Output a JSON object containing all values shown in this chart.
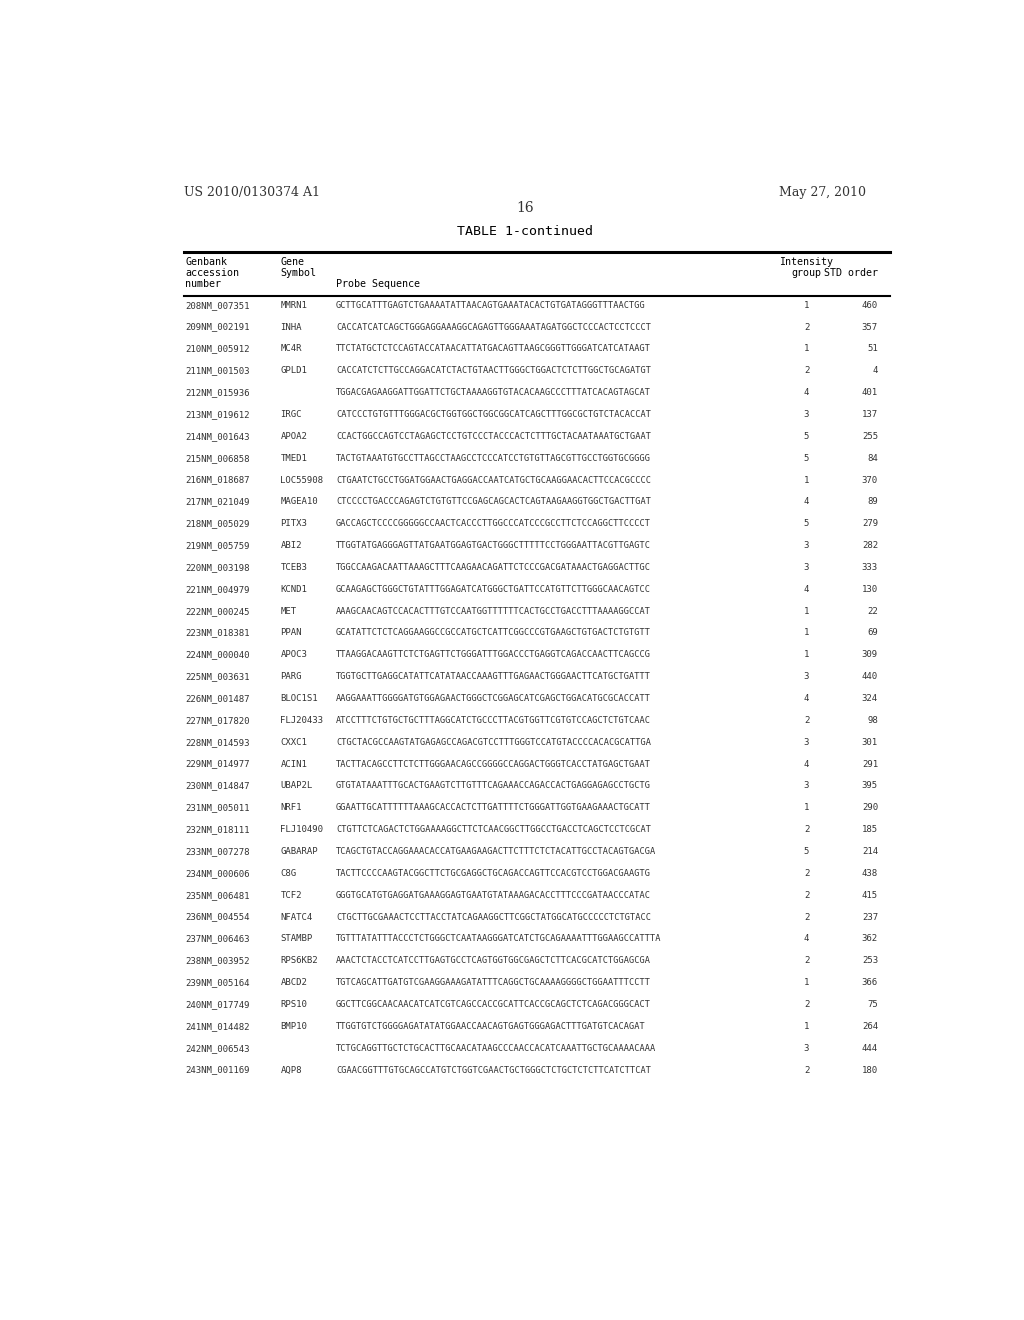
{
  "left_header": "US 2010/0130374 A1",
  "right_header": "May 27, 2010",
  "page_number": "16",
  "table_title": "TABLE 1-continued",
  "rows": [
    [
      "208NM_007351",
      "MMRN1",
      "GCTTGCATTTGAGTCTGAAAATATTAACAGTGAAATACACTGTGATAGGGTTTAACTGG",
      "1",
      "460"
    ],
    [
      "209NM_002191",
      "INHA",
      "CACCATCATCAGCTGGGAGGAAAGGCAGAGTTGGGAAATAGATGGCTCCCACTCCTCCCT",
      "2",
      "357"
    ],
    [
      "210NM_005912",
      "MC4R",
      "TTCTATGCTCTCCAGTACCATAACATTATGACAGTTAAGCGGGTTGGGATCATCATAAGT",
      "1",
      "51"
    ],
    [
      "211NM_001503",
      "GPLD1",
      "CACCATCTCTTGCCAGGACATCTACTGTAACTTGGGCTGGACTCTCTTGGCTGCAGATGT",
      "2",
      "4"
    ],
    [
      "212NM_015936",
      "",
      "TGGACGAGAAGGATTGGATTCTGCTAAAAGGTGTACACAAGCCCTTTATCACAGTAGCAT",
      "4",
      "401"
    ],
    [
      "213NM_019612",
      "IRGC",
      "CATCCCTGTGTTTGGGACGCTGGTGGCTGGCGGCATCAGCTTTGGCGCTGTCTACACCAT",
      "3",
      "137"
    ],
    [
      "214NM_001643",
      "APOA2",
      "CCACTGGCCAGTCCTAGAGCTCCTGTCCCTACCCACTCTTTGCTACAATAAATGCTGAAT",
      "5",
      "255"
    ],
    [
      "215NM_006858",
      "TMED1",
      "TACTGTAAATGTGCCTTAGCCTAAGCCTCCCATCCTGTGTTAGCGTTGCCTGGTGCGGGG",
      "5",
      "84"
    ],
    [
      "216NM_018687",
      "LOC55908",
      "CTGAATCTGCCTGGATGGAACTGAGGACCAATCATGCTGCAAGGAACACTTCCACGCCCC",
      "1",
      "370"
    ],
    [
      "217NM_021049",
      "MAGEA10",
      "CTCCCCTGACCCAGAGTCTGTGTTCCGAGCAGCACTCAGTAAGAAGGTGGCTGACTTGAT",
      "4",
      "89"
    ],
    [
      "218NM_005029",
      "PITX3",
      "GACCAGCTCCCCGGGGGCCAACTCACCCTTGGCCCATCCCGCCTTCTCCAGGCTTCCCCT",
      "5",
      "279"
    ],
    [
      "219NM_005759",
      "ABI2",
      "TTGGTATGAGGGAGTTATGAATGGAGTGACTGGGCTTTTTCCTGGGAATTACGTTGAGTC",
      "3",
      "282"
    ],
    [
      "220NM_003198",
      "TCEB3",
      "TGGCCAAGACAATTAAAGCTTTCAAGAACAGATTCTCCCGACGATAAACTGAGGACTTGC",
      "3",
      "333"
    ],
    [
      "221NM_004979",
      "KCND1",
      "GCAAGAGCTGGGCTGTATTTGGAGATCATGGGCTGATTCCATGTTCTTGGGCAACAGTCC",
      "4",
      "130"
    ],
    [
      "222NM_000245",
      "MET",
      "AAAGCAACAGTCCACACTTTGTCCAATGGTTTTTTCACTGCCTGACCTTTAAAAGGCCAT",
      "1",
      "22"
    ],
    [
      "223NM_018381",
      "PPAN",
      "GCATATTCTCTCAGGAAGGCCGCCATGCTCATTCGGCCCGTGAAGCTGTGACTCTGTGTT",
      "1",
      "69"
    ],
    [
      "224NM_000040",
      "APOC3",
      "TTAAGGACAAGTTCTCTGAGTTCTGGGATTTGGACCCTGAGGTCAGACCAACTTCAGCCG",
      "1",
      "309"
    ],
    [
      "225NM_003631",
      "PARG",
      "TGGTGCTTGAGGCATATTCATATAACCAAAGTTTGAGAACTGGGAACTTCATGCTGATTT",
      "3",
      "440"
    ],
    [
      "226NM_001487",
      "BLOC1S1",
      "AAGGAAATTGGGGATGTGGAGAACTGGGCTCGGAGCATCGAGCTGGACATGCGCACCATT",
      "4",
      "324"
    ],
    [
      "227NM_017820",
      "FLJ20433",
      "ATCCTTTCTGTGCTGCTTTAGGCATCTGCCCTTACGTGGTTCGTGTCCAGCTCTGTCAAC",
      "2",
      "98"
    ],
    [
      "228NM_014593",
      "CXXC1",
      "CTGCTACGCCAAGTATGAGAGCCAGACGTCCTTTGGGTCCATGTACCCCACACGCATTGA",
      "3",
      "301"
    ],
    [
      "229NM_014977",
      "ACIN1",
      "TACTTACAGCCTTCTCTTGGGAACAGCCGGGGCCAGGACTGGGTCACCTATGAGCTGAAT",
      "4",
      "291"
    ],
    [
      "230NM_014847",
      "UBAP2L",
      "GTGTATAAATTTGCACTGAAGTCTTGTTTCAGAAACCAGACCACTGAGGAGAGCCTGCTG",
      "3",
      "395"
    ],
    [
      "231NM_005011",
      "NRF1",
      "GGAATTGCATTTTTTAAAGCACCACTCTTGATTTTCTGGGATTGGTGAAGAAACTGCATT",
      "1",
      "290"
    ],
    [
      "232NM_018111",
      "FLJ10490",
      "CTGTTCTCAGACTCTGGAAAAGGCTTCTCAACGGCTTGGCCTGACCTCAGCTCCTCGCAT",
      "2",
      "185"
    ],
    [
      "233NM_007278",
      "GABARAP",
      "TCAGCTGTACCAGGAAACACCATGAAGAAGACTTCTTTCTCTACATTGCCTACAGTGACGA",
      "5",
      "214"
    ],
    [
      "234NM_000606",
      "C8G",
      "TACTTCCCCAAGTACGGCTTCTGCGAGGCTGCAGACCAGTTCCACGTCCTGGACGAAGTG",
      "2",
      "438"
    ],
    [
      "235NM_006481",
      "TCF2",
      "GGGTGCATGTGAGGATGAAAGGAGTGAATGTATAAAGACACCTTTCCCGATAACCCATAC",
      "2",
      "415"
    ],
    [
      "236NM_004554",
      "NFATC4",
      "CTGCTTGCGAAACTCCTTACCTATCAGAAGGCTTCGGCTATGGCATGCCCCCTCTGTACC",
      "2",
      "237"
    ],
    [
      "237NM_006463",
      "STAMBP",
      "TGTTTATATTTACCCTCTGGGCTCAATAAGGGATCATCTGCAGAAAATTTGGAAGCCATTTA",
      "4",
      "362"
    ],
    [
      "238NM_003952",
      "RPS6KB2",
      "AAACTCTACCTCATCCTTGAGTGCCTCAGTGGTGGCGAGCTCTTCACGCATCTGGAGCGA",
      "2",
      "253"
    ],
    [
      "239NM_005164",
      "ABCD2",
      "TGTCAGCATTGATGTCGAAGGAAAGATATTTCAGGCTGCAAAAGGGGCTGGAATTTCCTT",
      "1",
      "366"
    ],
    [
      "240NM_017749",
      "RPS10",
      "GGCTTCGGCAACAACATCATCGTCAGCCACCGCATTCACCGCAGCTCTCAGACGGGCACT",
      "2",
      "75"
    ],
    [
      "241NM_014482",
      "BMP10",
      "TTGGTGTCTGGGGAGATATATGGAACCAACAGTGAGTGGGAGACTTTGATGTCACAGAT",
      "1",
      "264"
    ],
    [
      "242NM_006543",
      "",
      "TCTGCAGGTТGCTCTGCACTTGCAACATAAGCCCAACCACATCAAATTGCTGCAAAACAAA",
      "3",
      "444"
    ],
    [
      "243NM_001169",
      "AQP8",
      "CGAACGGTTTGTGCAGCCATGTCTGGTCGAACTGCTGGGCTCTGCTCTCTTCATCTTCAT",
      "2",
      "180"
    ]
  ],
  "bg_color": "#ffffff",
  "text_color": "#333333",
  "header_color": "#000000"
}
